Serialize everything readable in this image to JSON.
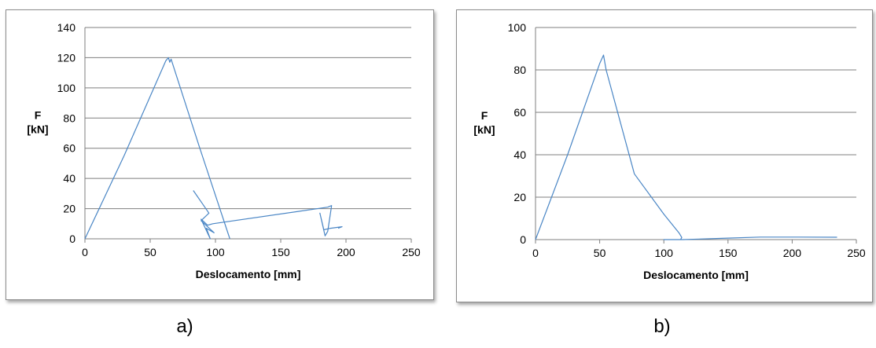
{
  "panel_labels": {
    "a": "a)",
    "b": "b)"
  },
  "colors": {
    "series": "#4a86c5",
    "grid": "#7f7f7f",
    "axis": "#7f7f7f"
  },
  "chart_data": [
    {
      "type": "line",
      "ylabel_line1": "F",
      "ylabel_line2": "[kN]",
      "xlabel": "Deslocamento [mm]",
      "xlim": [
        0,
        250
      ],
      "ylim": [
        0,
        140
      ],
      "xticks": [
        0,
        50,
        100,
        150,
        200,
        250
      ],
      "yticks": [
        0,
        20,
        40,
        60,
        80,
        100,
        120,
        140
      ],
      "grid": true,
      "series": [
        {
          "points": [
            [
              0,
              0
            ],
            [
              30,
              55
            ],
            [
              62,
              118
            ],
            [
              64,
              120
            ],
            [
              65,
              117
            ],
            [
              66,
              119
            ],
            [
              88,
              60
            ],
            [
              111,
              0
            ]
          ]
        },
        {
          "points": [
            [
              83,
              32
            ],
            [
              95,
              17
            ],
            [
              89,
              12
            ],
            [
              99,
              4
            ],
            [
              93,
              7
            ],
            [
              96,
              0
            ],
            [
              89,
              13
            ],
            [
              94,
              9
            ],
            [
              98,
              10
            ],
            [
              186,
              21
            ],
            [
              189,
              22
            ],
            [
              186,
              5
            ],
            [
              184,
              2
            ],
            [
              180,
              17
            ],
            [
              183,
              6
            ],
            [
              188,
              7
            ],
            [
              197,
              8
            ],
            [
              194,
              7
            ]
          ]
        }
      ]
    },
    {
      "type": "line",
      "ylabel_line1": "F",
      "ylabel_line2": "[kN]",
      "xlabel": "Deslocamento [mm]",
      "xlim": [
        0,
        250
      ],
      "ylim": [
        0,
        100
      ],
      "xticks": [
        0,
        50,
        100,
        150,
        200,
        250
      ],
      "yticks": [
        0,
        20,
        40,
        60,
        80,
        100
      ],
      "grid": true,
      "series": [
        {
          "points": [
            [
              0,
              0
            ],
            [
              25,
              40
            ],
            [
              50,
              83
            ],
            [
              53,
              87
            ],
            [
              55,
              80
            ],
            [
              77,
              31
            ],
            [
              100,
              12
            ],
            [
              112,
              3
            ],
            [
              114,
              1
            ],
            [
              113,
              0
            ],
            [
              100,
              0
            ],
            [
              115,
              0
            ],
            [
              150,
              0.7
            ],
            [
              175,
              1.2
            ],
            [
              200,
              1.2
            ],
            [
              235,
              1.1
            ]
          ]
        }
      ]
    }
  ]
}
